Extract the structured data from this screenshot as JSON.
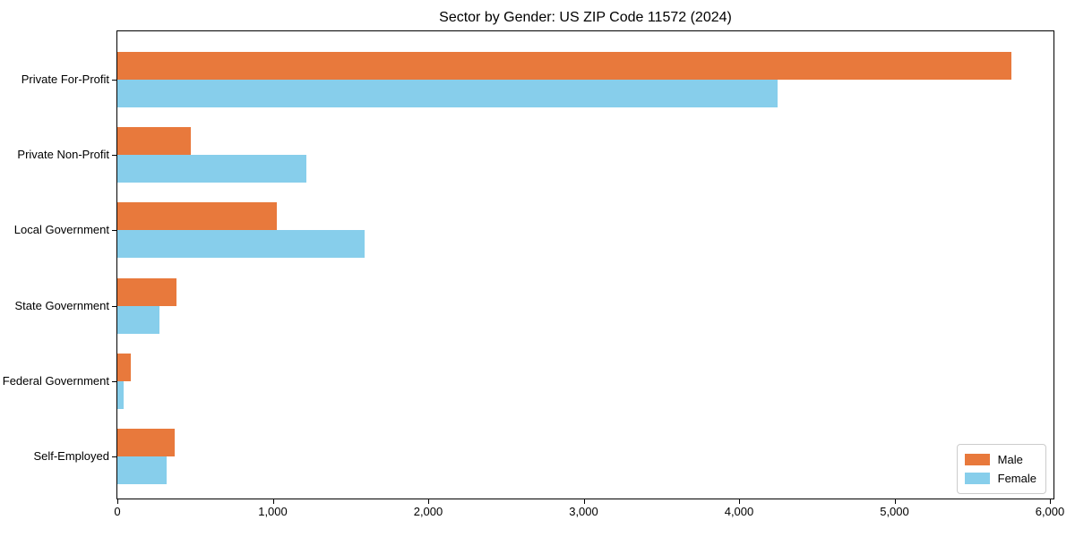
{
  "title": "Sector by Gender: US ZIP Code 11572 (2024)",
  "chart_data": {
    "type": "bar",
    "orientation": "horizontal",
    "title": "Sector by Gender: US ZIP Code 11572 (2024)",
    "categories": [
      "Private For-Profit",
      "Private Non-Profit",
      "Local Government",
      "State Government",
      "Federal Government",
      "Self-Employed"
    ],
    "series": [
      {
        "name": "Male",
        "color": "#E8793C",
        "values": [
          5750,
          475,
          1025,
          380,
          85,
          370
        ]
      },
      {
        "name": "Female",
        "color": "#87CEEB",
        "values": [
          4250,
          1215,
          1590,
          270,
          40,
          315
        ]
      }
    ],
    "xlabel": "",
    "ylabel": "",
    "xlim": [
      0,
      6000
    ],
    "xticks": [
      0,
      1000,
      2000,
      3000,
      4000,
      5000,
      6000
    ],
    "xtick_labels": [
      "0",
      "1,000",
      "2,000",
      "3,000",
      "4,000",
      "5,000",
      "6,000"
    ],
    "legend": {
      "position": "lower right",
      "entries": [
        "Male",
        "Female"
      ]
    },
    "grid": false,
    "colors": {
      "male": "#E8793C",
      "female": "#87CEEB",
      "axis": "#000000",
      "background": "#FFFFFF"
    }
  }
}
